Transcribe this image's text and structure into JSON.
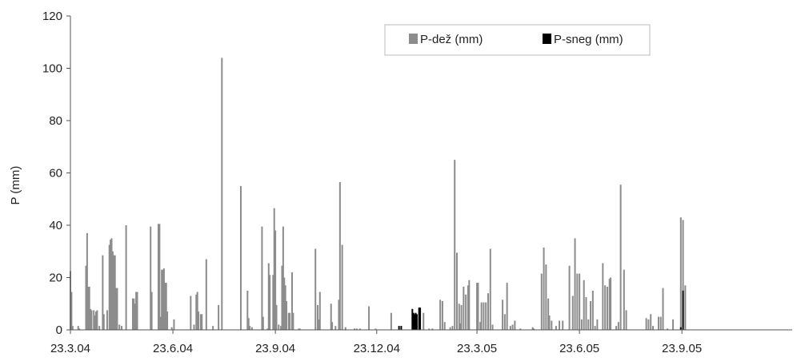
{
  "chart_data": {
    "type": "bar",
    "title": "",
    "xlabel": "",
    "ylabel": "P (mm)",
    "ylim": [
      0,
      120
    ],
    "yticks": [
      "0",
      "20",
      "40",
      "60",
      "80",
      "100",
      "120"
    ],
    "xlim": [
      "2004-03-23",
      "2005-12-31"
    ],
    "xtick_labels": [
      "23.3.04",
      "23.6.04",
      "23.9.04",
      "23.12.04",
      "23.3.05",
      "23.6.05",
      "23.9.05"
    ],
    "xtick_dates": [
      "2004-03-23",
      "2004-06-23",
      "2004-09-23",
      "2004-12-23",
      "2005-03-23",
      "2005-06-23",
      "2005-09-23"
    ],
    "grid": false,
    "legend_position": "top-right",
    "series": [
      {
        "name": "P-dež (mm)",
        "color": "#8c8c8c",
        "points": [
          [
            "2004-03-23",
            22.5
          ],
          [
            "2004-03-24",
            14.5
          ],
          [
            "2004-03-25",
            1.5
          ],
          [
            "2004-03-30",
            1.5
          ],
          [
            "2004-03-31",
            0.5
          ],
          [
            "2004-04-06",
            24.5
          ],
          [
            "2004-04-07",
            37
          ],
          [
            "2004-04-08",
            16.5
          ],
          [
            "2004-04-09",
            16.5
          ],
          [
            "2004-04-10",
            8
          ],
          [
            "2004-04-11",
            7.5
          ],
          [
            "2004-04-13",
            7.5
          ],
          [
            "2004-04-14",
            5.5
          ],
          [
            "2004-04-15",
            7
          ],
          [
            "2004-04-16",
            7.5
          ],
          [
            "2004-04-18",
            1.5
          ],
          [
            "2004-04-21",
            28.5
          ],
          [
            "2004-04-22",
            6
          ],
          [
            "2004-04-25",
            7.5
          ],
          [
            "2004-04-27",
            32.5
          ],
          [
            "2004-04-28",
            34.5
          ],
          [
            "2004-04-29",
            35
          ],
          [
            "2004-04-30",
            30
          ],
          [
            "2004-05-01",
            28.5
          ],
          [
            "2004-05-02",
            28.5
          ],
          [
            "2004-05-03",
            16
          ],
          [
            "2004-05-04",
            16
          ],
          [
            "2004-05-06",
            2
          ],
          [
            "2004-05-08",
            1.5
          ],
          [
            "2004-05-12",
            40
          ],
          [
            "2004-05-18",
            12
          ],
          [
            "2004-05-19",
            12
          ],
          [
            "2004-05-20",
            10
          ],
          [
            "2004-05-21",
            14.5
          ],
          [
            "2004-05-22",
            14.5
          ],
          [
            "2004-06-03",
            39.5
          ],
          [
            "2004-06-04",
            14.5
          ],
          [
            "2004-06-10",
            40.5
          ],
          [
            "2004-06-11",
            40.5
          ],
          [
            "2004-06-12",
            5
          ],
          [
            "2004-06-13",
            23
          ],
          [
            "2004-06-14",
            23
          ],
          [
            "2004-06-15",
            23.5
          ],
          [
            "2004-06-16",
            18
          ],
          [
            "2004-06-17",
            18
          ],
          [
            "2004-06-18",
            7
          ],
          [
            "2004-06-22",
            1
          ],
          [
            "2004-06-24",
            4
          ],
          [
            "2004-07-09",
            13
          ],
          [
            "2004-07-12",
            2
          ],
          [
            "2004-07-14",
            13.5
          ],
          [
            "2004-07-15",
            14.5
          ],
          [
            "2004-07-16",
            7
          ],
          [
            "2004-07-18",
            6
          ],
          [
            "2004-07-19",
            6
          ],
          [
            "2004-07-23",
            27
          ],
          [
            "2004-07-29",
            1.5
          ],
          [
            "2004-08-03",
            9.5
          ],
          [
            "2004-08-06",
            104
          ],
          [
            "2004-08-23",
            55
          ],
          [
            "2004-08-29",
            15
          ],
          [
            "2004-08-30",
            4.5
          ],
          [
            "2004-08-31",
            1.5
          ],
          [
            "2004-09-02",
            1
          ],
          [
            "2004-09-11",
            39.5
          ],
          [
            "2004-09-12",
            5
          ],
          [
            "2004-09-16",
            0.5
          ],
          [
            "2004-09-17",
            25.5
          ],
          [
            "2004-09-18",
            21
          ],
          [
            "2004-09-21",
            21
          ],
          [
            "2004-09-22",
            46.5
          ],
          [
            "2004-09-23",
            38
          ],
          [
            "2004-09-24",
            9.5
          ],
          [
            "2004-09-26",
            2
          ],
          [
            "2004-09-28",
            1.5
          ],
          [
            "2004-09-29",
            24.5
          ],
          [
            "2004-09-30",
            39.5
          ],
          [
            "2004-10-01",
            20
          ],
          [
            "2004-10-02",
            17
          ],
          [
            "2004-10-03",
            11
          ],
          [
            "2004-10-05",
            6.5
          ],
          [
            "2004-10-06",
            6.5
          ],
          [
            "2004-10-08",
            22
          ],
          [
            "2004-10-09",
            6.5
          ],
          [
            "2004-10-14",
            0.5
          ],
          [
            "2004-10-15",
            0.5
          ],
          [
            "2004-10-29",
            31
          ],
          [
            "2004-10-31",
            9.5
          ],
          [
            "2004-11-01",
            4
          ],
          [
            "2004-11-02",
            14.5
          ],
          [
            "2004-11-12",
            10
          ],
          [
            "2004-11-13",
            3
          ],
          [
            "2004-11-16",
            1.5
          ],
          [
            "2004-11-19",
            11.5
          ],
          [
            "2004-11-20",
            56.5
          ],
          [
            "2004-11-22",
            32.5
          ],
          [
            "2004-11-25",
            1
          ],
          [
            "2004-12-03",
            0.5
          ],
          [
            "2004-12-05",
            0.5
          ],
          [
            "2004-12-08",
            0.5
          ],
          [
            "2004-12-16",
            9
          ],
          [
            "2004-12-22",
            0.5
          ],
          [
            "2005-01-05",
            6.5
          ],
          [
            "2005-02-03",
            6.5
          ],
          [
            "2005-02-08",
            0.5
          ],
          [
            "2005-02-11",
            0.5
          ],
          [
            "2005-02-18",
            11.5
          ],
          [
            "2005-02-20",
            11
          ],
          [
            "2005-02-22",
            3
          ],
          [
            "2005-02-27",
            1
          ],
          [
            "2005-03-01",
            1.5
          ],
          [
            "2005-03-03",
            65
          ],
          [
            "2005-03-05",
            29.5
          ],
          [
            "2005-03-07",
            10
          ],
          [
            "2005-03-08",
            2.5
          ],
          [
            "2005-03-09",
            9.5
          ],
          [
            "2005-03-11",
            16.5
          ],
          [
            "2005-03-13",
            13.5
          ],
          [
            "2005-03-15",
            17
          ],
          [
            "2005-03-16",
            19
          ],
          [
            "2005-03-23",
            18
          ],
          [
            "2005-03-24",
            18
          ],
          [
            "2005-03-26",
            3
          ],
          [
            "2005-03-27",
            10.5
          ],
          [
            "2005-03-29",
            10.5
          ],
          [
            "2005-03-31",
            10.5
          ],
          [
            "2005-04-02",
            14
          ],
          [
            "2005-04-04",
            31
          ],
          [
            "2005-04-06",
            2
          ],
          [
            "2005-04-15",
            11.5
          ],
          [
            "2005-04-17",
            6
          ],
          [
            "2005-04-19",
            18
          ],
          [
            "2005-04-22",
            1.5
          ],
          [
            "2005-04-24",
            2
          ],
          [
            "2005-04-26",
            3.5
          ],
          [
            "2005-05-01",
            0.5
          ],
          [
            "2005-05-12",
            1
          ],
          [
            "2005-05-13",
            0.5
          ],
          [
            "2005-05-20",
            21.5
          ],
          [
            "2005-05-22",
            31.5
          ],
          [
            "2005-05-24",
            25
          ],
          [
            "2005-05-26",
            12
          ],
          [
            "2005-05-27",
            5.5
          ],
          [
            "2005-05-29",
            3.5
          ],
          [
            "2005-06-02",
            1.5
          ],
          [
            "2005-06-05",
            3.5
          ],
          [
            "2005-06-08",
            3.5
          ],
          [
            "2005-06-14",
            24.5
          ],
          [
            "2005-06-17",
            13
          ],
          [
            "2005-06-19",
            35
          ],
          [
            "2005-06-21",
            21.5
          ],
          [
            "2005-06-23",
            21.5
          ],
          [
            "2005-06-25",
            4
          ],
          [
            "2005-06-27",
            19
          ],
          [
            "2005-06-29",
            12.5
          ],
          [
            "2005-07-01",
            4
          ],
          [
            "2005-07-03",
            11
          ],
          [
            "2005-07-05",
            15
          ],
          [
            "2005-07-07",
            1.5
          ],
          [
            "2005-07-09",
            4
          ],
          [
            "2005-07-14",
            25.5
          ],
          [
            "2005-07-16",
            17
          ],
          [
            "2005-07-18",
            16.5
          ],
          [
            "2005-07-20",
            19.5
          ],
          [
            "2005-07-21",
            20
          ],
          [
            "2005-07-26",
            1.5
          ],
          [
            "2005-07-28",
            3
          ],
          [
            "2005-07-30",
            55.5
          ],
          [
            "2005-08-02",
            23
          ],
          [
            "2005-08-04",
            7.5
          ],
          [
            "2005-08-22",
            4.5
          ],
          [
            "2005-08-24",
            4
          ],
          [
            "2005-08-26",
            6
          ],
          [
            "2005-08-28",
            1.5
          ],
          [
            "2005-09-02",
            5
          ],
          [
            "2005-09-04",
            5
          ],
          [
            "2005-09-06",
            16
          ],
          [
            "2005-09-10",
            0.5
          ],
          [
            "2005-09-15",
            4
          ],
          [
            "2005-09-22",
            43
          ],
          [
            "2005-09-24",
            42
          ],
          [
            "2005-09-26",
            17
          ]
        ]
      },
      {
        "name": "P-sneg (mm)",
        "color": "#000000",
        "points": [
          [
            "2005-01-12",
            1.5
          ],
          [
            "2005-01-14",
            1.5
          ],
          [
            "2005-01-24",
            8
          ],
          [
            "2005-01-25",
            6.5
          ],
          [
            "2005-01-26",
            6
          ],
          [
            "2005-01-27",
            6.5
          ],
          [
            "2005-01-28",
            6
          ],
          [
            "2005-01-30",
            8.5
          ],
          [
            "2005-01-31",
            8.5
          ],
          [
            "2005-09-22",
            1
          ],
          [
            "2005-09-24",
            15
          ]
        ]
      }
    ]
  }
}
